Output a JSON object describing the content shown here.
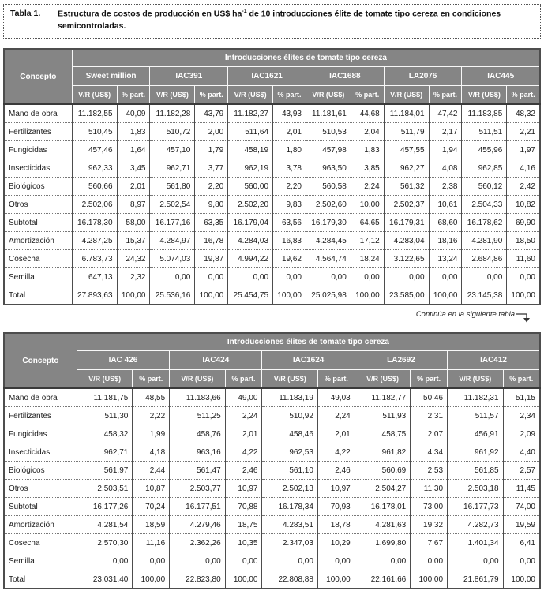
{
  "page": {
    "title_label": "Tabla 1.",
    "title_main": "Estructura de costos de producción en US$ ha",
    "title_sup": "-1",
    "title_rest": " de 10 introducciones élite de tomate tipo cereza en condiciones semicontroladas.",
    "continuation_note": "Continúa en la siguiente tabla",
    "continuation_arrow_icon": "down-arrow"
  },
  "colors": {
    "header_bg": "#858585",
    "header_text": "#ffffff",
    "body_text": "#1b1b1b",
    "border": "#4d4d4d"
  },
  "table_common": {
    "group_header": "Introducciones élites de tomate tipo cereza",
    "concepto_label": "Concepto",
    "vr_label": "V/R (US$)",
    "pct_label": "% part."
  },
  "tables": [
    {
      "cultivars": [
        "Sweet million",
        "IAC391",
        "IAC1621",
        "IAC1688",
        "LA2076",
        "IAC445"
      ],
      "rows": [
        {
          "label": "Mano de obra",
          "values": [
            [
              "11.182,55",
              "40,09"
            ],
            [
              "11.182,28",
              "43,79"
            ],
            [
              "11.182,27",
              "43,93"
            ],
            [
              "11.181,61",
              "44,68"
            ],
            [
              "11.184,01",
              "47,42"
            ],
            [
              "11.183,85",
              "48,32"
            ]
          ]
        },
        {
          "label": "Fertilizantes",
          "values": [
            [
              "510,45",
              "1,83"
            ],
            [
              "510,72",
              "2,00"
            ],
            [
              "511,64",
              "2,01"
            ],
            [
              "510,53",
              "2,04"
            ],
            [
              "511,79",
              "2,17"
            ],
            [
              "511,51",
              "2,21"
            ]
          ]
        },
        {
          "label": "Fungicidas",
          "values": [
            [
              "457,46",
              "1,64"
            ],
            [
              "457,10",
              "1,79"
            ],
            [
              "458,19",
              "1,80"
            ],
            [
              "457,98",
              "1,83"
            ],
            [
              "457,55",
              "1,94"
            ],
            [
              "455,96",
              "1,97"
            ]
          ]
        },
        {
          "label": "Insecticidas",
          "values": [
            [
              "962,33",
              "3,45"
            ],
            [
              "962,71",
              "3,77"
            ],
            [
              "962,19",
              "3,78"
            ],
            [
              "963,50",
              "3,85"
            ],
            [
              "962,27",
              "4,08"
            ],
            [
              "962,85",
              "4,16"
            ]
          ]
        },
        {
          "label": "Biológicos",
          "values": [
            [
              "560,66",
              "2,01"
            ],
            [
              "561,80",
              "2,20"
            ],
            [
              "560,00",
              "2,20"
            ],
            [
              "560,58",
              "2,24"
            ],
            [
              "561,32",
              "2,38"
            ],
            [
              "560,12",
              "2,42"
            ]
          ]
        },
        {
          "label": "Otros",
          "values": [
            [
              "2.502,06",
              "8,97"
            ],
            [
              "2.502,54",
              "9,80"
            ],
            [
              "2.502,20",
              "9,83"
            ],
            [
              "2.502,60",
              "10,00"
            ],
            [
              "2.502,37",
              "10,61"
            ],
            [
              "2.504,33",
              "10,82"
            ]
          ]
        },
        {
          "label": "Subtotal",
          "values": [
            [
              "16.178,30",
              "58,00"
            ],
            [
              "16.177,16",
              "63,35"
            ],
            [
              "16.179,04",
              "63,56"
            ],
            [
              "16.179,30",
              "64,65"
            ],
            [
              "16.179,31",
              "68,60"
            ],
            [
              "16.178,62",
              "69,90"
            ]
          ]
        },
        {
          "label": "Amortización",
          "values": [
            [
              "4.287,25",
              "15,37"
            ],
            [
              "4.284,97",
              "16,78"
            ],
            [
              "4.284,03",
              "16,83"
            ],
            [
              "4.284,45",
              "17,12"
            ],
            [
              "4.283,04",
              "18,16"
            ],
            [
              "4.281,90",
              "18,50"
            ]
          ]
        },
        {
          "label": "Cosecha",
          "values": [
            [
              "6.783,73",
              "24,32"
            ],
            [
              "5.074,03",
              "19,87"
            ],
            [
              "4.994,22",
              "19,62"
            ],
            [
              "4.564,74",
              "18,24"
            ],
            [
              "3.122,65",
              "13,24"
            ],
            [
              "2.684,86",
              "11,60"
            ]
          ]
        },
        {
          "label": "Semilla",
          "values": [
            [
              "647,13",
              "2,32"
            ],
            [
              "0,00",
              "0,00"
            ],
            [
              "0,00",
              "0,00"
            ],
            [
              "0,00",
              "0,00"
            ],
            [
              "0,00",
              "0,00"
            ],
            [
              "0,00",
              "0,00"
            ]
          ]
        },
        {
          "label": "Total",
          "values": [
            [
              "27.893,63",
              "100,00"
            ],
            [
              "25.536,16",
              "100,00"
            ],
            [
              "25.454,75",
              "100,00"
            ],
            [
              "25.025,98",
              "100,00"
            ],
            [
              "23.585,00",
              "100,00"
            ],
            [
              "23.145,38",
              "100,00"
            ]
          ]
        }
      ]
    },
    {
      "cultivars": [
        "IAC 426",
        "IAC424",
        "IAC1624",
        "LA2692",
        "IAC412"
      ],
      "rows": [
        {
          "label": "Mano de obra",
          "values": [
            [
              "11.181,75",
              "48,55"
            ],
            [
              "11.183,66",
              "49,00"
            ],
            [
              "11.183,19",
              "49,03"
            ],
            [
              "11.182,77",
              "50,46"
            ],
            [
              "11.182,31",
              "51,15"
            ]
          ]
        },
        {
          "label": "Fertilizantes",
          "values": [
            [
              "511,30",
              "2,22"
            ],
            [
              "511,25",
              "2,24"
            ],
            [
              "510,92",
              "2,24"
            ],
            [
              "511,93",
              "2,31"
            ],
            [
              "511,57",
              "2,34"
            ]
          ]
        },
        {
          "label": "Fungicidas",
          "values": [
            [
              "458,32",
              "1,99"
            ],
            [
              "458,76",
              "2,01"
            ],
            [
              "458,46",
              "2,01"
            ],
            [
              "458,75",
              "2,07"
            ],
            [
              "456,91",
              "2,09"
            ]
          ]
        },
        {
          "label": "Insecticidas",
          "values": [
            [
              "962,71",
              "4,18"
            ],
            [
              "963,16",
              "4,22"
            ],
            [
              "962,53",
              "4,22"
            ],
            [
              "961,82",
              "4,34"
            ],
            [
              "961,92",
              "4,40"
            ]
          ]
        },
        {
          "label": "Biológicos",
          "values": [
            [
              "561,97",
              "2,44"
            ],
            [
              "561,47",
              "2,46"
            ],
            [
              "561,10",
              "2,46"
            ],
            [
              "560,69",
              "2,53"
            ],
            [
              "561,85",
              "2,57"
            ]
          ]
        },
        {
          "label": "Otros",
          "values": [
            [
              "2.503,51",
              "10,87"
            ],
            [
              "2.503,77",
              "10,97"
            ],
            [
              "2.502,13",
              "10,97"
            ],
            [
              "2.504,27",
              "11,30"
            ],
            [
              "2.503,18",
              "11,45"
            ]
          ]
        },
        {
          "label": "Subtotal",
          "values": [
            [
              "16.177,26",
              "70,24"
            ],
            [
              "16.177,51",
              "70,88"
            ],
            [
              "16.178,34",
              "70,93"
            ],
            [
              "16.178,01",
              "73,00"
            ],
            [
              "16.177,73",
              "74,00"
            ]
          ]
        },
        {
          "label": "Amortización",
          "values": [
            [
              "4.281,54",
              "18,59"
            ],
            [
              "4.279,46",
              "18,75"
            ],
            [
              "4.283,51",
              "18,78"
            ],
            [
              "4.281,63",
              "19,32"
            ],
            [
              "4.282,73",
              "19,59"
            ]
          ]
        },
        {
          "label": "Cosecha",
          "values": [
            [
              "2.570,30",
              "11,16"
            ],
            [
              "2.362,26",
              "10,35"
            ],
            [
              "2.347,03",
              "10,29"
            ],
            [
              "1.699,80",
              "7,67"
            ],
            [
              "1.401,34",
              "6,41"
            ]
          ]
        },
        {
          "label": "Semilla",
          "values": [
            [
              "0,00",
              "0,00"
            ],
            [
              "0,00",
              "0,00"
            ],
            [
              "0,00",
              "0,00"
            ],
            [
              "0,00",
              "0,00"
            ],
            [
              "0,00",
              "0,00"
            ]
          ]
        },
        {
          "label": "Total",
          "values": [
            [
              "23.031,40",
              "100,00"
            ],
            [
              "22.823,80",
              "100,00"
            ],
            [
              "22.808,88",
              "100,00"
            ],
            [
              "22.161,66",
              "100,00"
            ],
            [
              "21.861,79",
              "100,00"
            ]
          ]
        }
      ]
    }
  ]
}
